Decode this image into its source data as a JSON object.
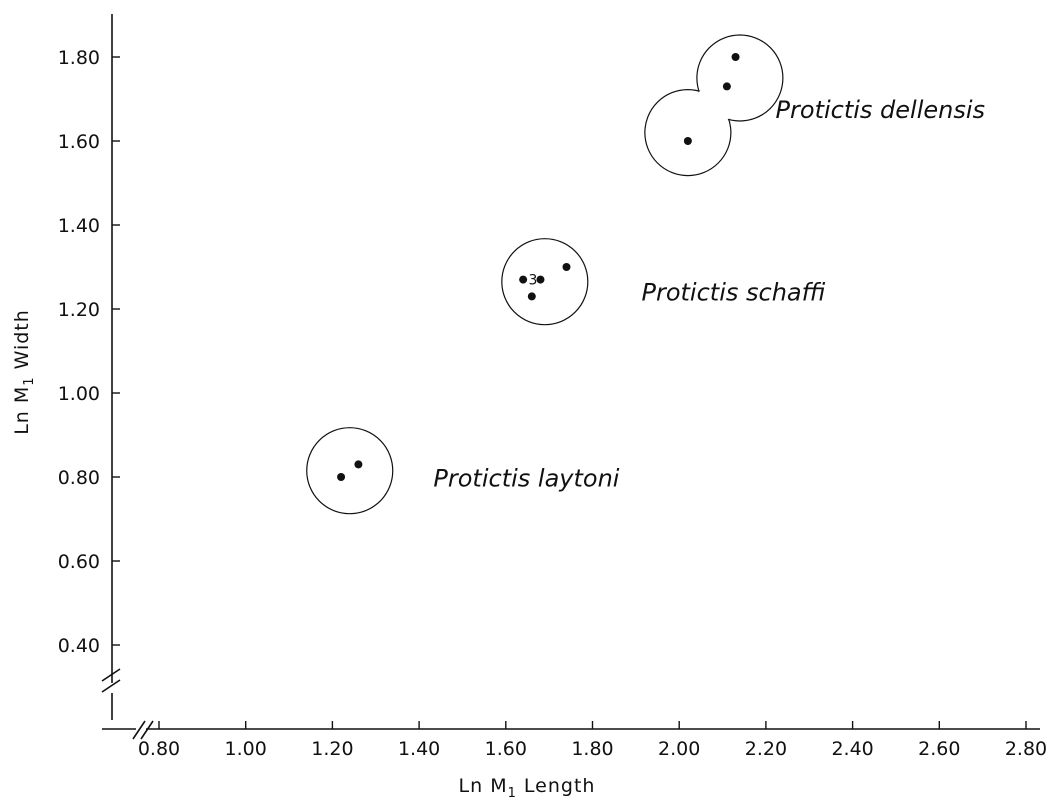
{
  "chart_data": {
    "type": "scatter",
    "title": "",
    "xlabel": "Ln M",
    "xlabel_sub": "1",
    "xlabel_rest": " Length",
    "ylabel": "Ln M",
    "ylabel_sub": "1",
    "ylabel_rest": " Width",
    "xlim": [
      0.7,
      2.9
    ],
    "ylim": [
      0.3,
      1.9
    ],
    "x_ticks": [
      "0.80",
      "1.00",
      "1.20",
      "1.40",
      "1.60",
      "1.80",
      "2.00",
      "2.20",
      "2.40",
      "2.60",
      "2.80"
    ],
    "y_ticks": [
      "0.40",
      "0.60",
      "0.80",
      "1.00",
      "1.20",
      "1.40",
      "1.60",
      "1.80"
    ],
    "groups": [
      {
        "name": "Protictis laytoni",
        "points": [
          {
            "x": 1.22,
            "y": 0.8
          },
          {
            "x": 1.26,
            "y": 0.83
          }
        ]
      },
      {
        "name": "Protictis schaffi",
        "points": [
          {
            "x": 1.64,
            "y": 1.27
          },
          {
            "x": 1.68,
            "y": 1.27,
            "count": "3"
          },
          {
            "x": 1.66,
            "y": 1.23
          },
          {
            "x": 1.74,
            "y": 1.3
          }
        ]
      },
      {
        "name": "Protictis dellensis",
        "points": [
          {
            "x": 2.02,
            "y": 1.6
          },
          {
            "x": 2.11,
            "y": 1.73
          },
          {
            "x": 2.13,
            "y": 1.8
          }
        ]
      }
    ]
  }
}
